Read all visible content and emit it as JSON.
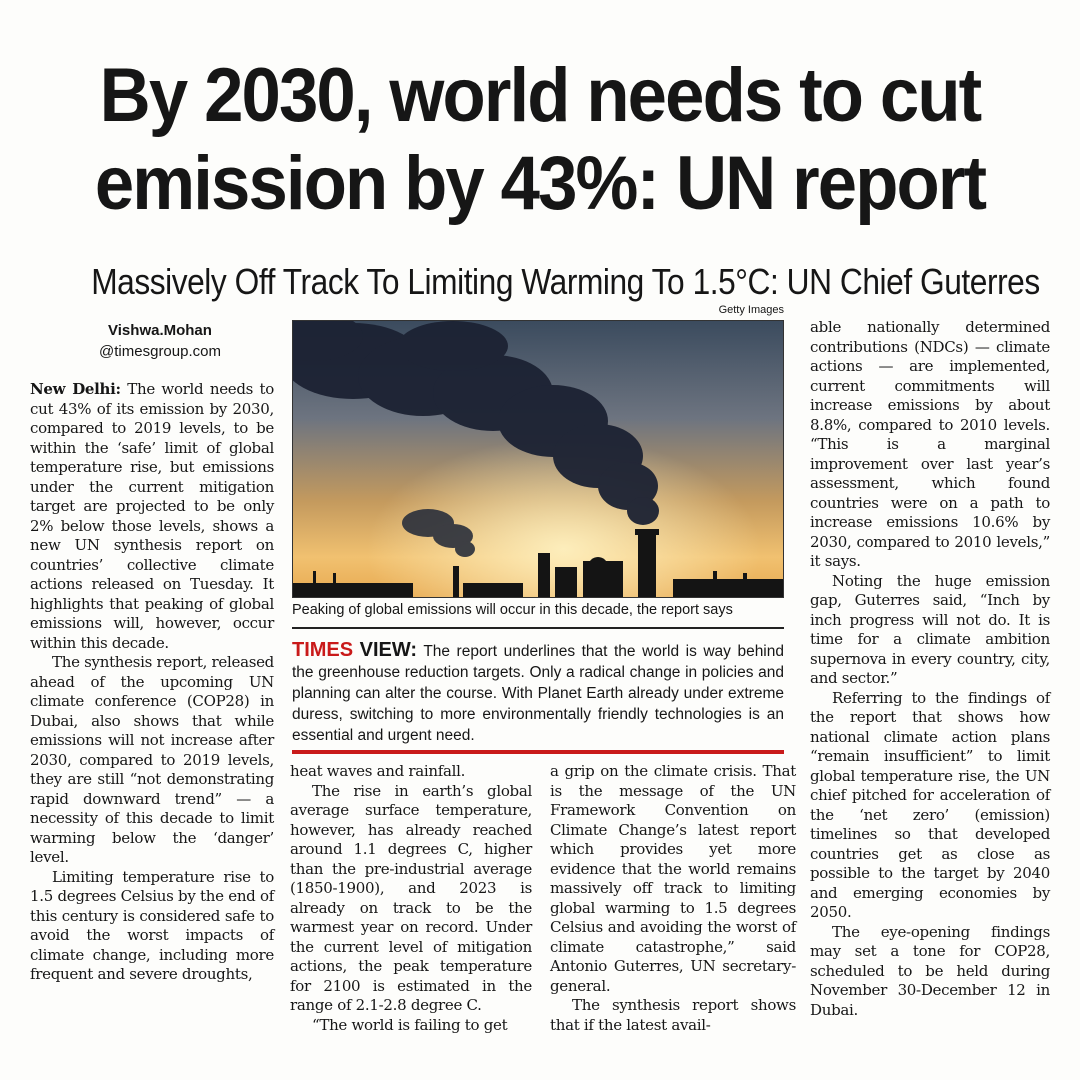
{
  "headline": {
    "line1": "By 2030, world needs to cut",
    "line2": "emission by 43%: UN report"
  },
  "subhead": "Massively Off Track To Limiting Warming To 1.5°C: UN Chief Guterres",
  "byline": {
    "name": "Vishwa.Mohan",
    "handle": "@timesgroup.com"
  },
  "photo": {
    "credit": "Getty Images",
    "caption": "Peaking of global emissions will occur in this decade, the report says"
  },
  "times_view": {
    "label_red": "TIMES",
    "label_black": "VIEW:",
    "text": "The report underlines that the world is way behind the greenhouse reduction targets. Only a radical change in policies and planning can alter the course. With Planet Earth already under extreme duress, switching to more environmentally friendly technologies is an essential and urgent need."
  },
  "article": {
    "dateline": "New Delhi:",
    "col1_p1": "The world needs to cut 43% of its emission by 2030, compared to 2019 levels, to be within the ‘safe’ limit of global temperature rise, but emissions under the current mitigation target are projected to be only 2% below those levels, shows a new UN synthesis report on countries’ collective climate actions released on Tuesday. It highlights that peaking of global emissions will, however, occur within this decade.",
    "col1_p2": "The synthesis report, released ahead of the upcoming UN climate conference (COP28) in Dubai, also shows that while emissions will not increase after 2030, compared to 2019 levels, they are still “not demonstrating rapid downward trend” — a necessity of this decade to limit warming below the ‘danger’ level.",
    "col1_p3": "Limiting temperature rise to 1.5 degrees Celsius by the end of this century is considered safe to avoid the worst impacts of climate change, including more frequent and severe droughts,",
    "col2_p1": "heat waves and rainfall.",
    "col2_p2": "The rise in earth’s global average surface temperature, however, has already reached around 1.1 degrees C, higher than the pre-industrial average (1850-1900), and 2023 is already on track to be the warmest year on record. Under the current level of mitigation actions, the peak temperature for 2100 is estimated in the range of 2.1-2.8 degree C.",
    "col2_p3": "“The world is failing to get",
    "col3_p1": "a grip on the climate crisis. That is the message of the UN Framework Convention on Climate Change’s latest report which provides yet more evidence that the world remains massively off track to limiting global warming to 1.5 degrees Celsius and avoiding the worst of climate catastrophe,” said Antonio Guterres, UN secretary-general.",
    "col3_p2": "The synthesis report shows that if the latest avail-",
    "col4_p1": "able nationally determined contributions (NDCs) — climate actions — are implemented, current commitments will increase emissions by about 8.8%, compared to 2010 levels. “This is a marginal improvement over last year’s assessment, which found countries were on a path to increase emissions 10.6% by 2030, compared to 2010 levels,” it says.",
    "col4_p2": "Noting the huge emission gap, Guterres said, “Inch by inch progress will not do. It is time for a climate ambition supernova in every country, city, and sector.”",
    "col4_p3": "Referring to the findings of the report that shows how national climate action plans “remain insufficient” to limit global temperature rise, the UN chief pitched for acceleration of the ‘net zero’ (emission) timelines so that developed countries get as close as possible to the target by 2040 and emerging economies by 2050.",
    "col4_p4": "The eye-opening findings may set a tone for COP28, scheduled to be held during November 30-December 12 in Dubai."
  },
  "colors": {
    "accent_red": "#c91a1a",
    "text": "#161616",
    "paper": "#fdfdfb"
  }
}
